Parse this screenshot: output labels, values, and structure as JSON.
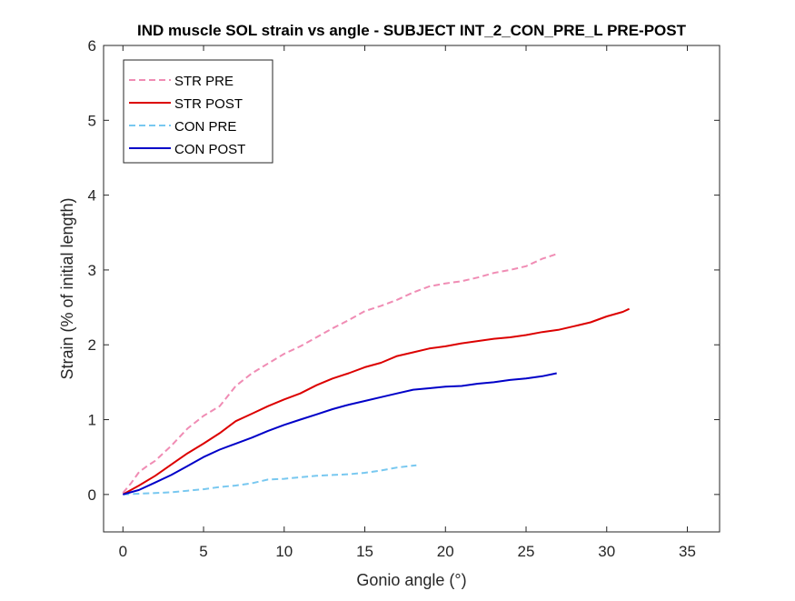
{
  "chart_data": {
    "type": "line",
    "title": "IND muscle SOL strain vs angle - SUBJECT INT_2_CON_PRE_L PRE-POST",
    "xlabel": "Gonio angle (°)",
    "ylabel": "Strain (% of initial length)",
    "xlim": [
      -1.2,
      37
    ],
    "ylim": [
      -0.5,
      6
    ],
    "xticks": [
      0,
      5,
      10,
      15,
      20,
      25,
      30,
      35
    ],
    "yticks": [
      0,
      1,
      2,
      3,
      4,
      5,
      6
    ],
    "xtick_labels": [
      "0",
      "5",
      "10",
      "15",
      "20",
      "25",
      "30",
      "35"
    ],
    "ytick_labels": [
      "0",
      "1",
      "2",
      "3",
      "4",
      "5",
      "6"
    ],
    "grid": false,
    "legend_position": "top-left",
    "series": [
      {
        "name": "STR PRE",
        "color": "#f08cb4",
        "style": "dashed",
        "x": [
          0,
          0.5,
          1,
          1.5,
          2,
          3,
          4,
          5,
          6,
          7,
          8,
          9,
          10,
          11,
          12,
          13,
          14,
          15,
          16,
          17,
          18,
          19,
          20,
          21,
          22,
          23,
          24,
          25,
          26,
          27
        ],
        "y": [
          0.02,
          0.15,
          0.3,
          0.38,
          0.45,
          0.65,
          0.88,
          1.05,
          1.18,
          1.45,
          1.62,
          1.75,
          1.88,
          1.98,
          2.1,
          2.22,
          2.33,
          2.45,
          2.52,
          2.6,
          2.7,
          2.78,
          2.82,
          2.85,
          2.9,
          2.96,
          3.0,
          3.05,
          3.15,
          3.22
        ]
      },
      {
        "name": "STR POST",
        "color": "#dc0000",
        "style": "solid",
        "x": [
          0,
          1,
          2,
          3,
          4,
          5,
          6,
          7,
          8,
          9,
          10,
          11,
          12,
          13,
          14,
          15,
          16,
          17,
          18,
          19,
          20,
          21,
          22,
          23,
          24,
          25,
          26,
          27,
          28,
          29,
          30,
          31,
          31.4
        ],
        "y": [
          0,
          0.12,
          0.25,
          0.4,
          0.55,
          0.68,
          0.82,
          0.98,
          1.08,
          1.18,
          1.27,
          1.35,
          1.46,
          1.55,
          1.62,
          1.7,
          1.76,
          1.85,
          1.9,
          1.95,
          1.98,
          2.02,
          2.05,
          2.08,
          2.1,
          2.13,
          2.17,
          2.2,
          2.25,
          2.3,
          2.38,
          2.44,
          2.48
        ]
      },
      {
        "name": "CON PRE",
        "color": "#78c8f0",
        "style": "dashed",
        "x": [
          0,
          1,
          2,
          3,
          4,
          5,
          6,
          7,
          8,
          9,
          10,
          11,
          12,
          13,
          14,
          15,
          16,
          17,
          18.2
        ],
        "y": [
          0,
          0.01,
          0.02,
          0.03,
          0.05,
          0.07,
          0.1,
          0.12,
          0.15,
          0.2,
          0.21,
          0.23,
          0.25,
          0.26,
          0.27,
          0.29,
          0.32,
          0.36,
          0.39
        ]
      },
      {
        "name": "CON POST",
        "color": "#0000c8",
        "style": "solid",
        "x": [
          0,
          1,
          2,
          3,
          4,
          5,
          6,
          7,
          8,
          9,
          10,
          11,
          12,
          13,
          14,
          15,
          16,
          17,
          18,
          19,
          20,
          21,
          22,
          23,
          24,
          25,
          26,
          26.9
        ],
        "y": [
          0,
          0.06,
          0.16,
          0.26,
          0.38,
          0.5,
          0.6,
          0.68,
          0.76,
          0.85,
          0.93,
          1.0,
          1.07,
          1.14,
          1.2,
          1.25,
          1.3,
          1.35,
          1.4,
          1.42,
          1.44,
          1.45,
          1.48,
          1.5,
          1.53,
          1.55,
          1.58,
          1.62
        ]
      }
    ]
  }
}
